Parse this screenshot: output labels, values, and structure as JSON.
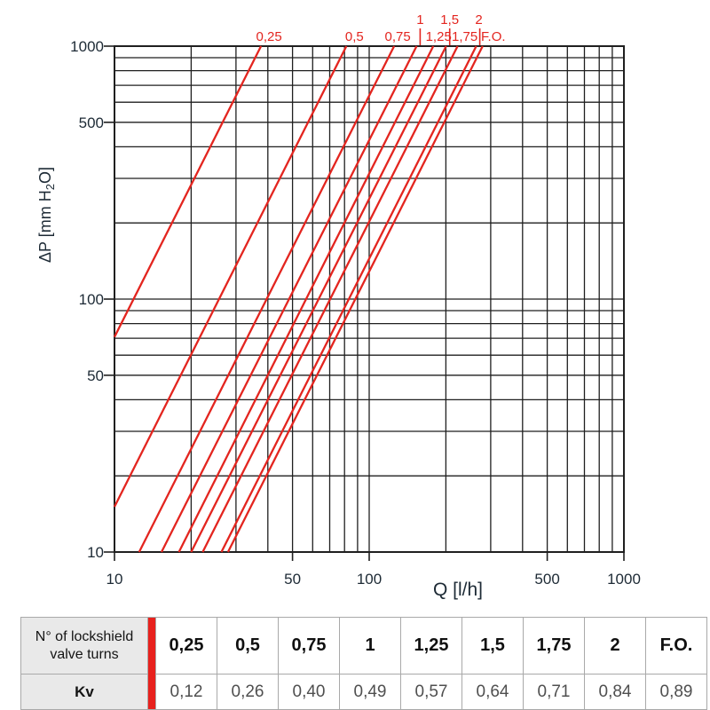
{
  "chart_data": {
    "type": "line",
    "scale": "log-log",
    "xlabel": "Q [l/h]",
    "ylabel": "ΔP [mm H2O]",
    "ylabel_pre": "ΔP [mm H",
    "ylabel_sub": "2",
    "ylabel_post": "O]",
    "xlim": [
      10,
      1000
    ],
    "ylim": [
      10,
      1000
    ],
    "grid": true,
    "grid_minors": [
      2,
      3,
      4,
      5,
      6,
      7,
      8,
      9
    ],
    "x_ticks": [
      {
        "value": 10,
        "label": "10"
      },
      {
        "value": 50,
        "label": "50"
      },
      {
        "value": 100,
        "label": "100"
      },
      {
        "value": 500,
        "label": "500"
      },
      {
        "value": 1000,
        "label": "1000"
      }
    ],
    "y_ticks": [
      {
        "value": 1000,
        "label": "1000"
      },
      {
        "value": 500,
        "label": "500"
      },
      {
        "value": 100,
        "label": "100"
      },
      {
        "value": 50,
        "label": "50"
      },
      {
        "value": 10,
        "label": "10"
      }
    ],
    "series": [
      {
        "label": "0,25",
        "kv": 0.12,
        "label_row": "lower",
        "label_dx": 9,
        "points": [
          [
            10,
            70.8
          ],
          [
            37.6,
            1000
          ]
        ]
      },
      {
        "label": "0,5",
        "kv": 0.26,
        "label_row": "lower",
        "label_dx": 9,
        "points": [
          [
            10,
            15.1
          ],
          [
            81.4,
            1000
          ]
        ]
      },
      {
        "label": "0,75",
        "kv": 0.4,
        "label_row": "lower",
        "label_dx": 4,
        "points": [
          [
            12.5,
            10
          ],
          [
            125.3,
            1000
          ]
        ]
      },
      {
        "label": "1",
        "kv": 0.49,
        "label_row": "upper",
        "label_dx": 4,
        "points": [
          [
            15.3,
            10
          ],
          [
            153.5,
            1000
          ]
        ]
      },
      {
        "label": "1,25",
        "kv": 0.57,
        "label_row": "lower",
        "label_dx": 6,
        "points": [
          [
            17.9,
            10
          ],
          [
            178.5,
            1000
          ]
        ]
      },
      {
        "label": "1,5",
        "kv": 0.64,
        "label_row": "upper",
        "label_dx": 4,
        "points": [
          [
            20.0,
            10
          ],
          [
            200.5,
            1000
          ]
        ]
      },
      {
        "label": "1,75",
        "kv": 0.71,
        "label_row": "lower",
        "label_dx": 8,
        "points": [
          [
            22.2,
            10
          ],
          [
            222.4,
            1000
          ]
        ]
      },
      {
        "label": "2",
        "kv": 0.84,
        "label_row": "upper",
        "label_dx": 3,
        "points": [
          [
            26.3,
            10
          ],
          [
            263.1,
            1000
          ]
        ]
      },
      {
        "label": "F.O.",
        "kv": 0.89,
        "label_row": "lower",
        "label_dx": 12,
        "points": [
          [
            27.9,
            10
          ],
          [
            278.8,
            1000
          ]
        ]
      }
    ],
    "line_color": "#e3251f",
    "grid_color": "#1f1f1f",
    "text_color": "#1d2a35"
  },
  "table": {
    "row1_header_line1": "N° of lockshield",
    "row1_header_line2": "valve turns",
    "row2_header": "Kv",
    "turns": [
      "0,25",
      "0,5",
      "0,75",
      "1",
      "1,25",
      "1,5",
      "1,75",
      "2",
      "F.O."
    ],
    "kv": [
      "0,12",
      "0,26",
      "0,40",
      "0,49",
      "0,57",
      "0,64",
      "0,71",
      "0,84",
      "0,89"
    ],
    "bar_color": "#e8211d",
    "header_bg": "#e9e9e9"
  }
}
